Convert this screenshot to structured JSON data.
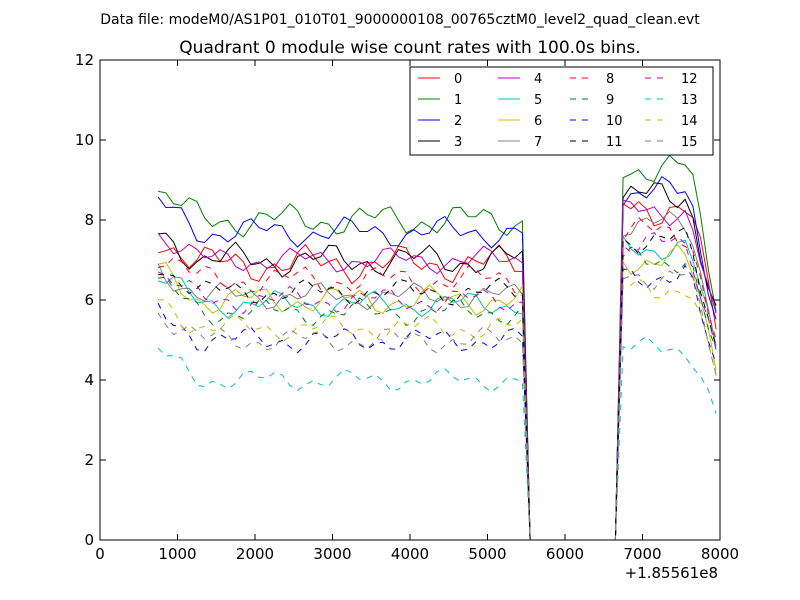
{
  "chart_data": {
    "type": "line",
    "header": "Data file: modeM0/AS1P01_010T01_9000000108_00765cztM0_level2_quad_clean.evt",
    "title": "Quadrant 0 module wise count rates with 100.0s bins.",
    "xlabel": "",
    "ylabel": "",
    "x_offset_label": "+1.85561e8",
    "xlim": [
      0,
      8000
    ],
    "ylim": [
      0,
      12
    ],
    "x_ticks": [
      0,
      1000,
      2000,
      3000,
      4000,
      5000,
      6000,
      7000,
      8000
    ],
    "y_ticks": [
      0,
      2,
      4,
      6,
      8,
      10,
      12
    ],
    "x_tick_labels": [
      "0",
      "1000",
      "2000",
      "3000",
      "4000",
      "5000",
      "6000",
      "7000",
      "8000"
    ],
    "y_tick_labels": [
      "0",
      "2",
      "4",
      "6",
      "8",
      "10",
      "12"
    ],
    "grid": false,
    "legend_position": "top-right",
    "x_segments": [
      {
        "start": 750,
        "end": 5450,
        "step": 100
      },
      {
        "start": 5550,
        "end": 6650,
        "step": 100
      },
      {
        "start": 6750,
        "end": 7950,
        "step": 100
      }
    ],
    "gap_value": 0,
    "series": [
      {
        "name": "0",
        "color": "#ff0000",
        "dash": "solid",
        "level": 6.9,
        "late_level": 8.3,
        "amp": 0.5
      },
      {
        "name": "1",
        "color": "#008000",
        "dash": "solid",
        "level": 8.0,
        "late_level": 9.3,
        "amp": 0.45
      },
      {
        "name": "2",
        "color": "#0000ff",
        "dash": "solid",
        "level": 7.7,
        "late_level": 8.7,
        "amp": 0.4
      },
      {
        "name": "3",
        "color": "#000000",
        "dash": "solid",
        "level": 7.0,
        "late_level": 8.6,
        "amp": 0.45
      },
      {
        "name": "4",
        "color": "#bf00bf",
        "dash": "solid",
        "level": 7.0,
        "late_level": 8.2,
        "amp": 0.35
      },
      {
        "name": "5",
        "color": "#00bfbf",
        "dash": "solid",
        "level": 5.9,
        "late_level": 7.3,
        "amp": 0.35
      },
      {
        "name": "6",
        "color": "#bfbf00",
        "dash": "solid",
        "level": 6.0,
        "late_level": 7.0,
        "amp": 0.4
      },
      {
        "name": "7",
        "color": "#808080",
        "dash": "solid",
        "level": 6.1,
        "late_level": 7.9,
        "amp": 0.35
      },
      {
        "name": "8",
        "color": "#ff0000",
        "dash": "dashed",
        "level": 6.5,
        "late_level": 7.7,
        "amp": 0.4
      },
      {
        "name": "9",
        "color": "#008000",
        "dash": "dashed",
        "level": 5.7,
        "late_level": 7.0,
        "amp": 0.35
      },
      {
        "name": "10",
        "color": "#0000ff",
        "dash": "dashed",
        "level": 5.0,
        "late_level": 6.6,
        "amp": 0.35
      },
      {
        "name": "11",
        "color": "#000000",
        "dash": "dashed",
        "level": 6.2,
        "late_level": 7.5,
        "amp": 0.35
      },
      {
        "name": "12",
        "color": "#bf00bf",
        "dash": "dashed",
        "level": 6.0,
        "late_level": 7.4,
        "amp": 0.35
      },
      {
        "name": "13",
        "color": "#00bfbf",
        "dash": "dashed",
        "level": 4.0,
        "late_level": 4.8,
        "amp": 0.3
      },
      {
        "name": "14",
        "color": "#bfbf00",
        "dash": "dashed",
        "level": 5.3,
        "late_level": 6.3,
        "amp": 0.35
      },
      {
        "name": "15",
        "color": "#808080",
        "dash": "dashed",
        "level": 5.0,
        "late_level": 6.6,
        "amp": 0.35
      }
    ]
  }
}
